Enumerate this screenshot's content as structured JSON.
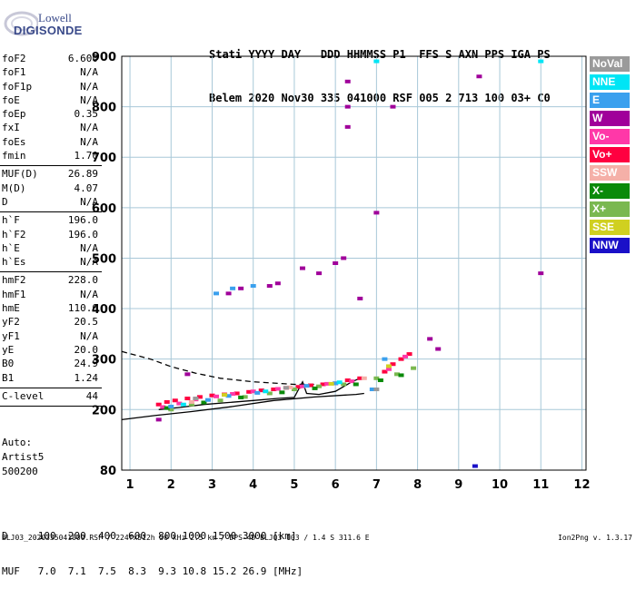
{
  "logo": {
    "line1": "Lowell",
    "line2": "DIGISONDE"
  },
  "header": {
    "row1": "Stati YYYY DAY   DDD HHMMSS P1  FFS S AXN PPS IGA PS",
    "row2": "Belem 2020 Nov30 335 041000 RSF 005 2 713 100 03+ C0"
  },
  "params": [
    {
      "label": "foF2",
      "value": "6.600",
      "sep": false
    },
    {
      "label": "foF1",
      "value": "N/A",
      "sep": false
    },
    {
      "label": "foF1p",
      "value": "N/A",
      "sep": false
    },
    {
      "label": "foE",
      "value": "N/A",
      "sep": false
    },
    {
      "label": "foEp",
      "value": "0.35",
      "sep": false
    },
    {
      "label": "fxI",
      "value": "N/A",
      "sep": false
    },
    {
      "label": "foEs",
      "value": "N/A",
      "sep": false
    },
    {
      "label": "fmin",
      "value": "1.70",
      "sep": true
    },
    {
      "label": "MUF(D)",
      "value": "26.89",
      "sep": false
    },
    {
      "label": "M(D)",
      "value": "4.07",
      "sep": false
    },
    {
      "label": "D",
      "value": "N/A",
      "sep": true
    },
    {
      "label": "h`F",
      "value": "196.0",
      "sep": false
    },
    {
      "label": "h`F2",
      "value": "196.0",
      "sep": false
    },
    {
      "label": "h`E",
      "value": "N/A",
      "sep": false
    },
    {
      "label": "h`Es",
      "value": "N/A",
      "sep": true
    },
    {
      "label": "hmF2",
      "value": "228.0",
      "sep": false
    },
    {
      "label": "hmF1",
      "value": "N/A",
      "sep": false
    },
    {
      "label": "hmE",
      "value": "110.0",
      "sep": false
    },
    {
      "label": "yF2",
      "value": "20.5",
      "sep": false
    },
    {
      "label": "yF1",
      "value": "N/A",
      "sep": false
    },
    {
      "label": "yE",
      "value": "20.0",
      "sep": false
    },
    {
      "label": "B0",
      "value": "24.9",
      "sep": false
    },
    {
      "label": "B1",
      "value": "1.24",
      "sep": true
    },
    {
      "label": "C-level",
      "value": "44",
      "sep": true
    }
  ],
  "auto": {
    "title": "Auto:",
    "artist": "Artist5",
    "version": "500200"
  },
  "legend": [
    {
      "label": "NoVal",
      "color": "#9a9a9a"
    },
    {
      "label": "NNE",
      "color": "#00e5f5"
    },
    {
      "label": "E",
      "color": "#3aa0ee"
    },
    {
      "label": "W",
      "color": "#a0009a"
    },
    {
      "label": "Vo-",
      "color": "#ff38a8"
    },
    {
      "label": "Vo+",
      "color": "#ff0040"
    },
    {
      "label": "SSW",
      "color": "#f5b0a8"
    },
    {
      "label": "X-",
      "color": "#0a8a0a"
    },
    {
      "label": "X+",
      "color": "#7ab850"
    },
    {
      "label": "SSE",
      "color": "#d0d020"
    },
    {
      "label": "NNW",
      "color": "#1a10c8"
    }
  ],
  "bottom": {
    "row1": "D     100  200  400  600  800 1000 1500 3000 [km]",
    "row2": "MUF   7.0  7.1  7.5  8.3  9.3 10.8 15.2 26.9 [MHz]"
  },
  "footer": {
    "left": "BLJ03_2020335041000.RSF / 224fx512h 50 kHz 2.5 km / DPS-4D BLJ03 103 / 1.4 S 311.6 E",
    "right": "Ion2Png v. 1.3.17"
  },
  "chart_data": {
    "type": "scatter",
    "xlim": [
      0.8,
      12.1
    ],
    "ylim": [
      80,
      900
    ],
    "xticks": [
      1,
      2,
      3,
      4,
      5,
      6,
      7,
      8,
      9,
      10,
      11,
      12
    ],
    "yticks": [
      80,
      200,
      300,
      400,
      500,
      600,
      700,
      800,
      900
    ],
    "grid": true,
    "series": [
      {
        "name": "Vo+",
        "color": "#ff0040",
        "points": [
          [
            1.7,
            210
          ],
          [
            1.9,
            215
          ],
          [
            2.1,
            218
          ],
          [
            2.4,
            222
          ],
          [
            2.7,
            225
          ],
          [
            3.0,
            228
          ],
          [
            3.3,
            230
          ],
          [
            3.6,
            232
          ],
          [
            3.9,
            235
          ],
          [
            4.2,
            238
          ],
          [
            4.5,
            240
          ],
          [
            4.8,
            243
          ],
          [
            5.1,
            245
          ],
          [
            5.4,
            248
          ],
          [
            5.7,
            250
          ],
          [
            6.0,
            252
          ],
          [
            6.3,
            258
          ],
          [
            6.6,
            262
          ],
          [
            7.2,
            275
          ],
          [
            7.4,
            290
          ],
          [
            7.6,
            300
          ],
          [
            7.8,
            310
          ]
        ]
      },
      {
        "name": "Vo-",
        "color": "#ff38a8",
        "points": [
          [
            1.8,
            205
          ],
          [
            2.2,
            212
          ],
          [
            2.6,
            220
          ],
          [
            3.1,
            226
          ],
          [
            3.5,
            231
          ],
          [
            4.0,
            236
          ],
          [
            4.6,
            241
          ],
          [
            5.2,
            246
          ],
          [
            5.8,
            251
          ],
          [
            6.4,
            256
          ],
          [
            7.3,
            280
          ],
          [
            7.7,
            305
          ]
        ]
      },
      {
        "name": "X+",
        "color": "#7ab850",
        "points": [
          [
            2.0,
            200
          ],
          [
            2.5,
            210
          ],
          [
            3.2,
            218
          ],
          [
            3.8,
            225
          ],
          [
            4.4,
            232
          ],
          [
            5.0,
            240
          ],
          [
            5.6,
            246
          ],
          [
            6.2,
            250
          ],
          [
            7.0,
            262
          ],
          [
            7.5,
            270
          ],
          [
            7.9,
            282
          ]
        ]
      },
      {
        "name": "X-",
        "color": "#0a8a0a",
        "points": [
          [
            1.9,
            203
          ],
          [
            2.8,
            214
          ],
          [
            3.7,
            224
          ],
          [
            4.7,
            234
          ],
          [
            5.5,
            242
          ],
          [
            6.5,
            250
          ],
          [
            7.1,
            258
          ],
          [
            7.6,
            268
          ]
        ]
      },
      {
        "name": "E",
        "color": "#3aa0ee",
        "points": [
          [
            2.0,
            206
          ],
          [
            2.9,
            219
          ],
          [
            3.4,
            227
          ],
          [
            4.1,
            233
          ],
          [
            5.3,
            247
          ],
          [
            6.0,
            252
          ],
          [
            6.9,
            240
          ],
          [
            7.2,
            300
          ],
          [
            3.1,
            430
          ],
          [
            3.5,
            440
          ],
          [
            4.0,
            445
          ]
        ]
      },
      {
        "name": "NNE",
        "color": "#00e5f5",
        "points": [
          [
            2.3,
            210
          ],
          [
            4.3,
            236
          ],
          [
            6.1,
            254
          ],
          [
            7.0,
            890
          ],
          [
            11.0,
            890
          ]
        ]
      },
      {
        "name": "W",
        "color": "#a0009a",
        "points": [
          [
            1.7,
            180
          ],
          [
            6.3,
            850
          ],
          [
            6.3,
            800
          ],
          [
            6.3,
            760
          ],
          [
            7.4,
            800
          ],
          [
            8.3,
            340
          ],
          [
            8.5,
            320
          ],
          [
            9.5,
            860
          ],
          [
            11.0,
            470
          ],
          [
            2.4,
            270
          ],
          [
            7.0,
            590
          ],
          [
            6.6,
            420
          ],
          [
            5.2,
            480
          ],
          [
            4.6,
            450
          ],
          [
            3.4,
            430
          ],
          [
            3.7,
            440
          ],
          [
            4.4,
            445
          ],
          [
            5.6,
            470
          ],
          [
            6.0,
            490
          ],
          [
            6.2,
            500
          ]
        ]
      },
      {
        "name": "SSW",
        "color": "#f5b0a8",
        "points": [
          [
            2.5,
            215
          ],
          [
            4.9,
            244
          ],
          [
            6.7,
            262
          ]
        ]
      },
      {
        "name": "SSE",
        "color": "#d0d020",
        "points": [
          [
            3.3,
            229
          ],
          [
            5.9,
            251
          ],
          [
            7.3,
            286
          ]
        ]
      },
      {
        "name": "NNW",
        "color": "#1a10c8",
        "points": [
          [
            9.4,
            88
          ]
        ]
      },
      {
        "name": "NoVal",
        "color": "#9a9a9a",
        "points": [
          [
            2.6,
            222
          ],
          [
            4.8,
            243
          ],
          [
            7.0,
            240
          ]
        ]
      }
    ],
    "lines": [
      {
        "name": "virtual-height-trace",
        "style": "solid",
        "points": [
          [
            0.8,
            180
          ],
          [
            1.6,
            188
          ],
          [
            2.5,
            196
          ],
          [
            3.5,
            206
          ],
          [
            4.5,
            218
          ],
          [
            5.5,
            225
          ],
          [
            6.5,
            230
          ],
          [
            6.7,
            232
          ]
        ]
      },
      {
        "name": "model-profile",
        "style": "dashed",
        "points": [
          [
            0.8,
            315
          ],
          [
            1.5,
            300
          ],
          [
            2.0,
            285
          ],
          [
            2.6,
            272
          ],
          [
            3.2,
            262
          ],
          [
            4.0,
            255
          ],
          [
            5.0,
            250
          ],
          [
            5.5,
            250
          ]
        ]
      },
      {
        "name": "scaled-trace",
        "style": "solid",
        "points": [
          [
            1.7,
            200
          ],
          [
            2.2,
            204
          ],
          [
            2.8,
            210
          ],
          [
            3.4,
            214
          ],
          [
            4.0,
            218
          ],
          [
            4.6,
            222
          ],
          [
            5.0,
            224
          ],
          [
            5.2,
            255
          ],
          [
            5.3,
            232
          ],
          [
            5.6,
            230
          ],
          [
            6.0,
            236
          ],
          [
            6.4,
            255
          ],
          [
            6.6,
            262
          ]
        ]
      }
    ]
  }
}
